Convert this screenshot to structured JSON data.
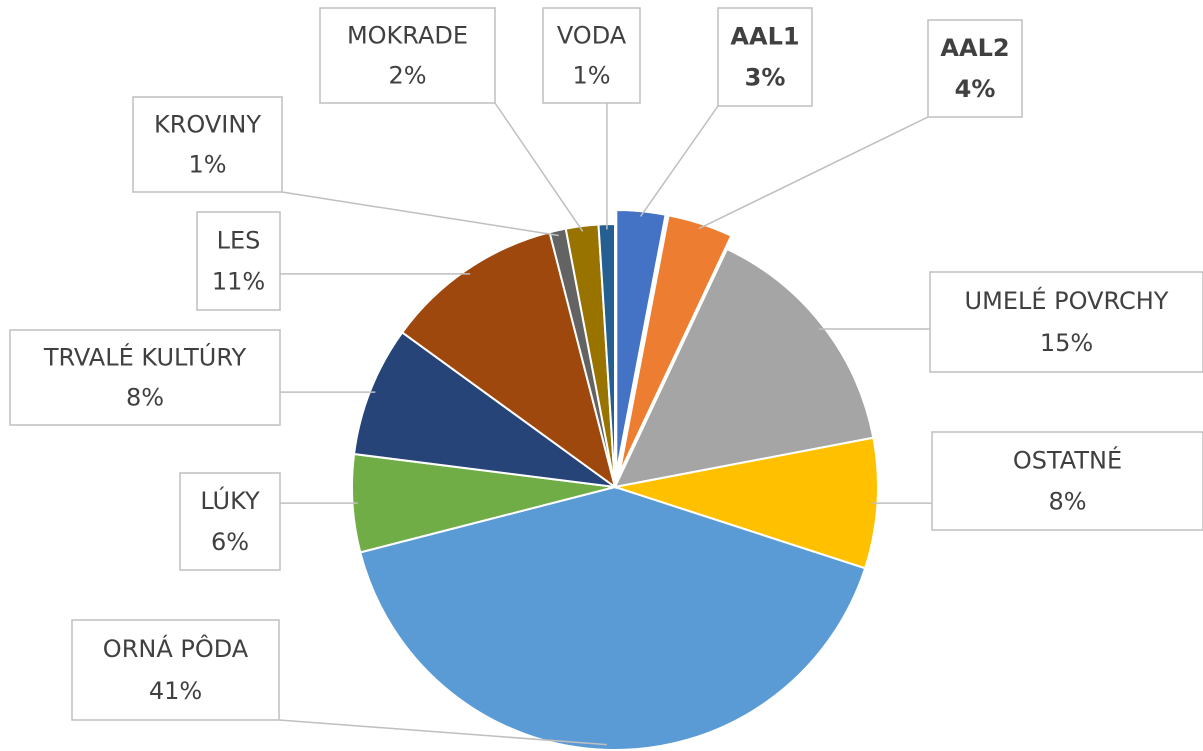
{
  "chart_data": {
    "type": "pie",
    "categories": [
      "AAL1",
      "AAL2",
      "UMELÉ POVRCHY",
      "OSTATNÉ",
      "ORNÁ PÔDA",
      "LÚKY",
      "TRVALÉ KULTÚRY",
      "LES",
      "KROVINY",
      "MOKRADE",
      "VODA"
    ],
    "values": [
      3,
      4,
      15,
      8,
      41,
      6,
      8,
      11,
      1,
      2,
      1
    ],
    "value_labels": [
      "3%",
      "4%",
      "15%",
      "8%",
      "41%",
      "6%",
      "8%",
      "11%",
      "1%",
      "2%",
      "1%"
    ],
    "colors": [
      "#4472c4",
      "#ed7d31",
      "#a5a5a5",
      "#ffc000",
      "#5b9bd5",
      "#70ad47",
      "#264478",
      "#9e480e",
      "#636363",
      "#997300",
      "#255e91"
    ],
    "explode": [
      true,
      true,
      false,
      false,
      false,
      false,
      false,
      false,
      false,
      false,
      false
    ]
  }
}
